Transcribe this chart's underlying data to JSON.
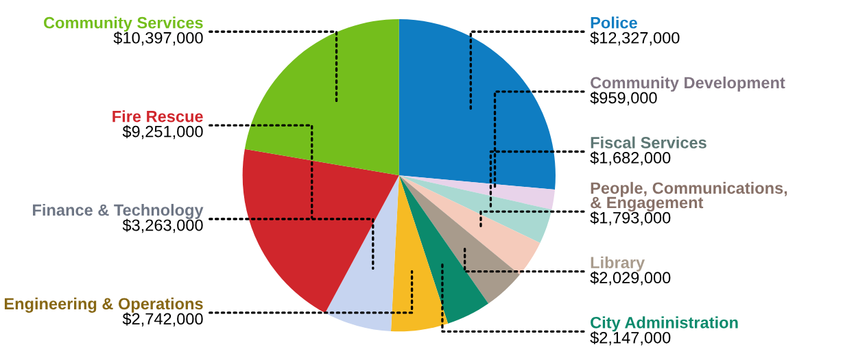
{
  "chart_data": {
    "type": "pie",
    "categories": [
      "Police",
      "Community Development",
      "Fiscal Services",
      "People, Communications,\n& Engagement",
      "Library",
      "City Administration",
      "Engineering & Operations",
      "Finance & Technology",
      "Fire Rescue",
      "Community Services"
    ],
    "values": [
      12327000,
      959000,
      1682000,
      1793000,
      2029000,
      2147000,
      2742000,
      3263000,
      9251000,
      10397000
    ],
    "value_labels": [
      "$12,327,000",
      "$959,000",
      "$1,682,000",
      "$1,793,000",
      "$2,029,000",
      "$2,147,000",
      "$2,742,000",
      "$3,263,000",
      "$9,251,000",
      "$10,397,000"
    ],
    "colors": [
      "#0f7dc2",
      "#e8d3ea",
      "#a9d9d2",
      "#f5cbbb",
      "#a89b8c",
      "#0b8a6c",
      "#f6bb24",
      "#c6d4f0",
      "#d0262c",
      "#74be1c"
    ]
  }
}
